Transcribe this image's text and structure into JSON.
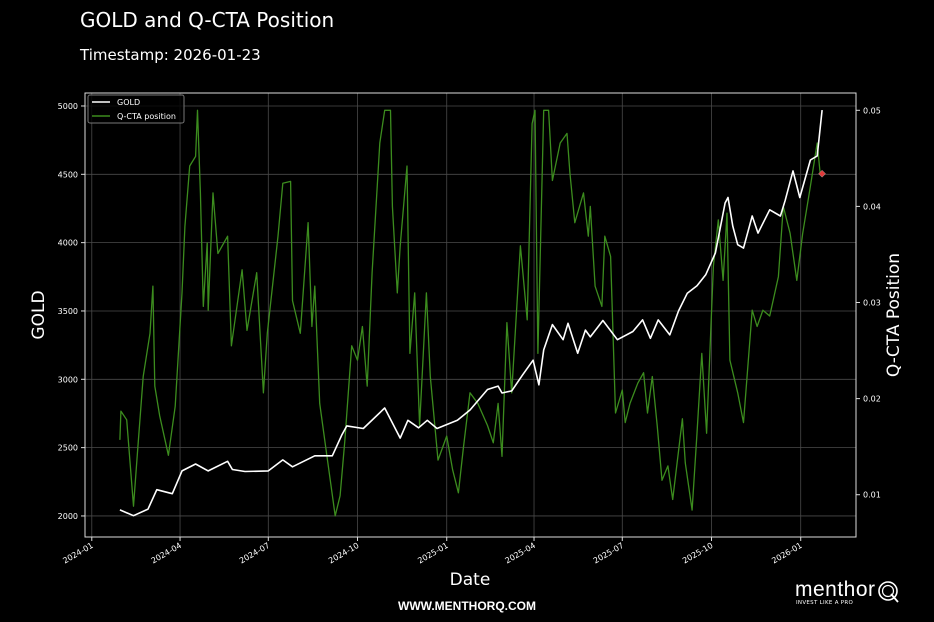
{
  "title": "GOLD and Q-CTA Position",
  "subtitle": "Timestamp: 2026-01-23",
  "footer": "WWW.MENTHORQ.COM",
  "logo": {
    "word": "menthor",
    "tagline": "INVEST LIKE A PRO",
    "mark": "Q"
  },
  "colors": {
    "background": "#000000",
    "gold": "#ffffff",
    "cta": "#3c8c1e",
    "marker": "#e03a3a",
    "grid": "#4a4a4a"
  },
  "chart_data": {
    "type": "line",
    "xlabel": "Date",
    "ylabel": "GOLD",
    "y2label": "Q-CTA Position",
    "xlim": [
      "2023-12-25",
      "2026-02-27"
    ],
    "ylim": [
      1846,
      5095
    ],
    "y2lim": [
      0.0056,
      0.0518
    ],
    "grid": true,
    "legend": "top-left",
    "xticks": [
      "2024-01",
      "2024-04",
      "2024-07",
      "2024-10",
      "2025-01",
      "2025-04",
      "2025-07",
      "2025-10",
      "2026-01"
    ],
    "yticks": [
      2000,
      2500,
      3000,
      3500,
      4000,
      4500,
      5000
    ],
    "y2ticks": [
      0.01,
      0.02,
      0.03,
      0.04,
      0.05
    ],
    "series": [
      {
        "name": "GOLD",
        "axis": "left",
        "points": [
          [
            "2024-01-30",
            2044
          ],
          [
            "2024-02-13",
            2002
          ],
          [
            "2024-02-28",
            2050
          ],
          [
            "2024-03-08",
            2192
          ],
          [
            "2024-03-24",
            2163
          ],
          [
            "2024-04-03",
            2330
          ],
          [
            "2024-04-17",
            2380
          ],
          [
            "2024-04-30",
            2330
          ],
          [
            "2024-05-20",
            2400
          ],
          [
            "2024-05-25",
            2340
          ],
          [
            "2024-06-07",
            2325
          ],
          [
            "2024-07-01",
            2330
          ],
          [
            "2024-07-16",
            2410
          ],
          [
            "2024-07-26",
            2360
          ],
          [
            "2024-08-18",
            2440
          ],
          [
            "2024-09-05",
            2440
          ],
          [
            "2024-09-15",
            2595
          ],
          [
            "2024-09-20",
            2659
          ],
          [
            "2024-10-07",
            2640
          ],
          [
            "2024-10-29",
            2790
          ],
          [
            "2024-11-14",
            2570
          ],
          [
            "2024-11-22",
            2700
          ],
          [
            "2024-12-03",
            2645
          ],
          [
            "2024-12-12",
            2700
          ],
          [
            "2024-12-22",
            2640
          ],
          [
            "2025-01-12",
            2700
          ],
          [
            "2025-01-25",
            2775
          ],
          [
            "2025-02-12",
            2925
          ],
          [
            "2025-02-23",
            2950
          ],
          [
            "2025-02-27",
            2900
          ],
          [
            "2025-03-09",
            2915
          ],
          [
            "2025-03-20",
            3030
          ],
          [
            "2025-03-31",
            3140
          ],
          [
            "2025-04-06",
            2960
          ],
          [
            "2025-04-11",
            3215
          ],
          [
            "2025-04-20",
            3400
          ],
          [
            "2025-05-01",
            3290
          ],
          [
            "2025-05-06",
            3410
          ],
          [
            "2025-05-16",
            3190
          ],
          [
            "2025-05-24",
            3360
          ],
          [
            "2025-05-29",
            3310
          ],
          [
            "2025-06-11",
            3430
          ],
          [
            "2025-06-26",
            3290
          ],
          [
            "2025-07-12",
            3350
          ],
          [
            "2025-07-22",
            3435
          ],
          [
            "2025-07-30",
            3300
          ],
          [
            "2025-08-07",
            3435
          ],
          [
            "2025-08-19",
            3325
          ],
          [
            "2025-08-28",
            3500
          ],
          [
            "2025-09-06",
            3630
          ],
          [
            "2025-09-16",
            3685
          ],
          [
            "2025-09-25",
            3765
          ],
          [
            "2025-10-05",
            3925
          ],
          [
            "2025-10-15",
            4290
          ],
          [
            "2025-10-18",
            4330
          ],
          [
            "2025-10-23",
            4120
          ],
          [
            "2025-10-28",
            3985
          ],
          [
            "2025-11-03",
            3960
          ],
          [
            "2025-11-12",
            4195
          ],
          [
            "2025-11-18",
            4070
          ],
          [
            "2025-11-30",
            4240
          ],
          [
            "2025-12-11",
            4195
          ],
          [
            "2025-12-16",
            4310
          ],
          [
            "2025-12-24",
            4525
          ],
          [
            "2025-12-31",
            4330
          ],
          [
            "2026-01-11",
            4605
          ],
          [
            "2026-01-18",
            4635
          ],
          [
            "2026-01-23",
            4970
          ]
        ]
      },
      {
        "name": "Q-CTA position",
        "axis": "right",
        "points": [
          [
            "2024-01-30",
            0.0157
          ],
          [
            "2024-01-31",
            0.0187
          ],
          [
            "2024-02-06",
            0.0178
          ],
          [
            "2024-02-13",
            0.0088
          ],
          [
            "2024-02-17",
            0.0143
          ],
          [
            "2024-02-23",
            0.0223
          ],
          [
            "2024-03-01",
            0.0268
          ],
          [
            "2024-03-04",
            0.0317
          ],
          [
            "2024-03-06",
            0.0213
          ],
          [
            "2024-03-11",
            0.0182
          ],
          [
            "2024-03-20",
            0.0141
          ],
          [
            "2024-03-27",
            0.0192
          ],
          [
            "2024-04-03",
            0.031
          ],
          [
            "2024-04-06",
            0.0379
          ],
          [
            "2024-04-11",
            0.0442
          ],
          [
            "2024-04-17",
            0.0452
          ],
          [
            "2024-04-19",
            0.05
          ],
          [
            "2024-04-22",
            0.0414
          ],
          [
            "2024-04-25",
            0.0296
          ],
          [
            "2024-04-29",
            0.0362
          ],
          [
            "2024-04-30",
            0.0292
          ],
          [
            "2024-05-05",
            0.0414
          ],
          [
            "2024-05-10",
            0.0351
          ],
          [
            "2024-05-20",
            0.0369
          ],
          [
            "2024-05-24",
            0.0255
          ],
          [
            "2024-06-04",
            0.0334
          ],
          [
            "2024-06-09",
            0.0271
          ],
          [
            "2024-06-19",
            0.0331
          ],
          [
            "2024-06-26",
            0.0206
          ],
          [
            "2024-06-30",
            0.0268
          ],
          [
            "2024-07-11",
            0.0369
          ],
          [
            "2024-07-16",
            0.0424
          ],
          [
            "2024-07-24",
            0.0426
          ],
          [
            "2024-07-26",
            0.0302
          ],
          [
            "2024-08-03",
            0.0268
          ],
          [
            "2024-08-11",
            0.0383
          ],
          [
            "2024-08-15",
            0.0275
          ],
          [
            "2024-08-18",
            0.0317
          ],
          [
            "2024-08-23",
            0.0195
          ],
          [
            "2024-08-29",
            0.0151
          ],
          [
            "2024-09-08",
            0.0078
          ],
          [
            "2024-09-13",
            0.0099
          ],
          [
            "2024-09-18",
            0.0157
          ],
          [
            "2024-09-25",
            0.0255
          ],
          [
            "2024-10-01",
            0.024
          ],
          [
            "2024-10-06",
            0.0275
          ],
          [
            "2024-10-11",
            0.0213
          ],
          [
            "2024-10-16",
            0.0331
          ],
          [
            "2024-10-24",
            0.0466
          ],
          [
            "2024-10-29",
            0.05
          ],
          [
            "2024-11-04",
            0.05
          ],
          [
            "2024-11-06",
            0.04
          ],
          [
            "2024-11-11",
            0.031
          ],
          [
            "2024-11-14",
            0.0359
          ],
          [
            "2024-11-21",
            0.0442
          ],
          [
            "2024-11-24",
            0.0247
          ],
          [
            "2024-11-29",
            0.031
          ],
          [
            "2024-12-04",
            0.0172
          ],
          [
            "2024-12-11",
            0.031
          ],
          [
            "2024-12-15",
            0.0223
          ],
          [
            "2024-12-23",
            0.0136
          ],
          [
            "2025-01-01",
            0.0161
          ],
          [
            "2025-01-07",
            0.0126
          ],
          [
            "2025-01-13",
            0.0102
          ],
          [
            "2025-01-18",
            0.0147
          ],
          [
            "2025-01-25",
            0.0206
          ],
          [
            "2025-02-02",
            0.0195
          ],
          [
            "2025-02-12",
            0.0172
          ],
          [
            "2025-02-18",
            0.0154
          ],
          [
            "2025-02-23",
            0.0195
          ],
          [
            "2025-02-27",
            0.014
          ],
          [
            "2025-03-04",
            0.0279
          ],
          [
            "2025-03-09",
            0.0206
          ],
          [
            "2025-03-18",
            0.0359
          ],
          [
            "2025-03-25",
            0.0282
          ],
          [
            "2025-03-30",
            0.0486
          ],
          [
            "2025-04-02",
            0.05
          ],
          [
            "2025-04-05",
            0.0247
          ],
          [
            "2025-04-11",
            0.05
          ],
          [
            "2025-04-16",
            0.05
          ],
          [
            "2025-04-20",
            0.0427
          ],
          [
            "2025-04-28",
            0.0466
          ],
          [
            "2025-05-05",
            0.0476
          ],
          [
            "2025-05-08",
            0.0435
          ],
          [
            "2025-05-13",
            0.0383
          ],
          [
            "2025-05-22",
            0.0414
          ],
          [
            "2025-05-27",
            0.0369
          ],
          [
            "2025-05-29",
            0.04
          ],
          [
            "2025-06-03",
            0.0317
          ],
          [
            "2025-06-10",
            0.0296
          ],
          [
            "2025-06-13",
            0.0369
          ],
          [
            "2025-06-19",
            0.0348
          ],
          [
            "2025-06-24",
            0.0185
          ],
          [
            "2025-07-01",
            0.0209
          ],
          [
            "2025-07-04",
            0.0175
          ],
          [
            "2025-07-09",
            0.0195
          ],
          [
            "2025-07-17",
            0.0216
          ],
          [
            "2025-07-23",
            0.0227
          ],
          [
            "2025-07-27",
            0.0185
          ],
          [
            "2025-08-01",
            0.0223
          ],
          [
            "2025-08-06",
            0.0172
          ],
          [
            "2025-08-11",
            0.0115
          ],
          [
            "2025-08-17",
            0.013
          ],
          [
            "2025-08-22",
            0.0095
          ],
          [
            "2025-09-01",
            0.0179
          ],
          [
            "2025-09-04",
            0.0133
          ],
          [
            "2025-09-11",
            0.0084
          ],
          [
            "2025-09-16",
            0.0164
          ],
          [
            "2025-09-21",
            0.0247
          ],
          [
            "2025-09-26",
            0.0164
          ],
          [
            "2025-10-03",
            0.0338
          ],
          [
            "2025-10-08",
            0.0386
          ],
          [
            "2025-10-13",
            0.0323
          ],
          [
            "2025-10-17",
            0.0393
          ],
          [
            "2025-10-20",
            0.024
          ],
          [
            "2025-10-28",
            0.0206
          ],
          [
            "2025-11-03",
            0.0175
          ],
          [
            "2025-11-12",
            0.0292
          ],
          [
            "2025-11-17",
            0.0275
          ],
          [
            "2025-11-23",
            0.0292
          ],
          [
            "2025-11-30",
            0.0286
          ],
          [
            "2025-12-09",
            0.0327
          ],
          [
            "2025-12-14",
            0.04
          ],
          [
            "2025-12-21",
            0.0372
          ],
          [
            "2025-12-28",
            0.0323
          ],
          [
            "2026-01-03",
            0.0372
          ],
          [
            "2026-01-11",
            0.0421
          ],
          [
            "2026-01-18",
            0.0466
          ],
          [
            "2026-01-21",
            0.0435
          ],
          [
            "2026-01-23",
            0.0434
          ]
        ]
      }
    ],
    "marker": {
      "series": "Q-CTA position",
      "date": "2026-01-23",
      "value": 0.0434
    }
  }
}
